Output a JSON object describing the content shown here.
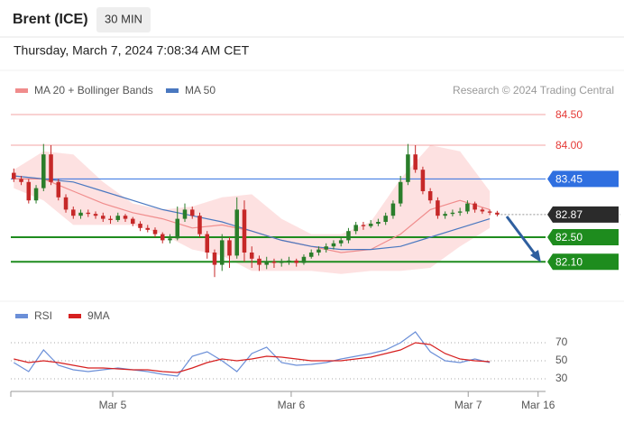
{
  "header": {
    "title": "Brent (ICE)",
    "timeframe": "30 MIN",
    "timestamp": "Thursday, March 7, 2024 7:08:34 AM CET"
  },
  "chart_data": [
    {
      "type": "candlestick",
      "note": "Research © 2024 Trading Central",
      "xlim": [
        -0.4,
        71.5
      ],
      "ylim": [
        81.5,
        84.75
      ],
      "up_color": "#2a7d2a",
      "down_color": "#c62828",
      "x": [
        0,
        1,
        2,
        3,
        4,
        5,
        6,
        7,
        8,
        9,
        10,
        11,
        12,
        13,
        14,
        15,
        16,
        17,
        18,
        19,
        20,
        21,
        22,
        23,
        24,
        25,
        26,
        27,
        28,
        29,
        30,
        31,
        32,
        33,
        34,
        35,
        36,
        37,
        38,
        39,
        40,
        41,
        42,
        43,
        44,
        45,
        46,
        47,
        48,
        49,
        50,
        51,
        52,
        53,
        54,
        55,
        56,
        57,
        58,
        59,
        60,
        61,
        62,
        63,
        64,
        65
      ],
      "open": [
        83.55,
        83.45,
        83.4,
        83.1,
        83.3,
        83.85,
        83.4,
        83.15,
        82.95,
        82.85,
        82.9,
        82.88,
        82.85,
        82.8,
        82.78,
        82.85,
        82.8,
        82.72,
        82.65,
        82.62,
        82.55,
        82.45,
        82.48,
        82.8,
        82.95,
        82.85,
        82.55,
        82.25,
        82.05,
        82.45,
        82.2,
        82.95,
        82.25,
        82.15,
        82.05,
        82.1,
        82.08,
        82.1,
        82.12,
        82.08,
        82.18,
        82.25,
        82.3,
        82.35,
        82.4,
        82.45,
        82.6,
        82.7,
        82.68,
        82.72,
        82.75,
        82.85,
        83.05,
        83.4,
        83.85,
        83.6,
        83.25,
        83.1,
        82.85,
        82.88,
        82.9,
        82.92,
        83.05,
        82.95,
        82.92,
        82.9
      ],
      "high": [
        83.62,
        83.5,
        83.45,
        83.35,
        84.02,
        84.0,
        83.45,
        83.2,
        83.0,
        82.95,
        82.95,
        82.92,
        82.9,
        82.85,
        82.9,
        82.88,
        82.83,
        82.76,
        82.7,
        82.66,
        82.58,
        82.55,
        83.0,
        83.05,
        83.0,
        82.9,
        82.6,
        82.3,
        82.55,
        82.5,
        83.15,
        83.1,
        82.35,
        82.2,
        82.18,
        82.15,
        82.15,
        82.18,
        82.15,
        82.22,
        82.3,
        82.35,
        82.4,
        82.45,
        82.5,
        82.65,
        82.75,
        82.75,
        82.78,
        82.8,
        82.9,
        83.1,
        83.5,
        84.02,
        84.0,
        83.65,
        83.3,
        83.15,
        82.92,
        82.95,
        82.98,
        83.1,
        83.08,
        82.98,
        82.95,
        82.93
      ],
      "low": [
        83.4,
        83.35,
        83.05,
        83.05,
        83.25,
        83.35,
        83.1,
        82.9,
        82.8,
        82.8,
        82.83,
        82.8,
        82.75,
        82.72,
        82.75,
        82.75,
        82.68,
        82.6,
        82.58,
        82.5,
        82.4,
        82.4,
        82.45,
        82.75,
        82.8,
        82.5,
        82.15,
        81.85,
        81.95,
        82.0,
        82.15,
        82.1,
        82.0,
        81.95,
        81.98,
        82.0,
        82.02,
        82.05,
        82.02,
        82.05,
        82.15,
        82.2,
        82.25,
        82.3,
        82.35,
        82.4,
        82.55,
        82.62,
        82.65,
        82.68,
        82.7,
        82.8,
        83.0,
        83.35,
        83.55,
        83.2,
        83.05,
        82.8,
        82.8,
        82.84,
        82.85,
        82.88,
        82.9,
        82.88,
        82.86,
        82.84
      ],
      "close": [
        83.45,
        83.4,
        83.1,
        83.3,
        83.85,
        83.4,
        83.15,
        82.95,
        82.85,
        82.9,
        82.88,
        82.85,
        82.8,
        82.78,
        82.85,
        82.8,
        82.72,
        82.65,
        82.62,
        82.55,
        82.45,
        82.48,
        82.8,
        82.95,
        82.85,
        82.55,
        82.25,
        82.05,
        82.45,
        82.2,
        82.95,
        82.25,
        82.15,
        82.05,
        82.1,
        82.08,
        82.1,
        82.12,
        82.08,
        82.18,
        82.25,
        82.3,
        82.35,
        82.4,
        82.45,
        82.6,
        82.7,
        82.68,
        82.72,
        82.75,
        82.85,
        83.05,
        83.4,
        83.85,
        83.6,
        83.25,
        83.1,
        82.85,
        82.88,
        82.9,
        82.92,
        83.05,
        82.95,
        82.92,
        82.9,
        82.87
      ],
      "series": [
        {
          "name": "MA 20 + Bollinger Bands",
          "color": "#f08c8c",
          "band_color": "#fcd9d9",
          "x": [
            0,
            4,
            8,
            12,
            16,
            20,
            24,
            28,
            32,
            36,
            40,
            44,
            48,
            52,
            56,
            60,
            64
          ],
          "values": [
            83.45,
            83.45,
            83.25,
            83.05,
            82.9,
            82.8,
            82.65,
            82.7,
            82.6,
            82.45,
            82.35,
            82.25,
            82.3,
            82.55,
            82.95,
            83.1,
            82.95
          ],
          "upper": [
            83.6,
            83.9,
            83.85,
            83.4,
            83.05,
            82.95,
            83.0,
            83.15,
            83.2,
            82.8,
            82.55,
            82.55,
            82.75,
            83.45,
            84.0,
            83.9,
            83.25
          ],
          "lower": [
            83.3,
            83.1,
            82.7,
            82.7,
            82.7,
            82.55,
            82.3,
            82.2,
            81.95,
            81.95,
            81.95,
            81.9,
            81.95,
            81.95,
            82.0,
            82.35,
            82.65
          ]
        },
        {
          "name": "MA 50",
          "color": "#4a78c0",
          "x": [
            0,
            4,
            8,
            12,
            16,
            20,
            24,
            28,
            32,
            36,
            40,
            44,
            48,
            52,
            56,
            60,
            64
          ],
          "values": [
            83.5,
            83.45,
            83.4,
            83.25,
            83.1,
            82.95,
            82.85,
            82.75,
            82.6,
            82.45,
            82.35,
            82.3,
            82.3,
            82.35,
            82.5,
            82.65,
            82.8
          ]
        }
      ],
      "levels": [
        {
          "value": 84.5,
          "label": "84.50",
          "color": "#e53935",
          "boxed": false,
          "line_style": "solid",
          "line_width": 1
        },
        {
          "value": 84,
          "label": "84.00",
          "color": "#e53935",
          "boxed": false,
          "line_style": "solid",
          "line_width": 1
        },
        {
          "value": 83.45,
          "label": "83.45",
          "color": "#2f6fe0",
          "boxed": true,
          "line_style": "solid",
          "line_width": 1
        },
        {
          "value": 82.87,
          "label": "82.87",
          "color": "#2b2b2b",
          "boxed": true,
          "line_style": "dotted",
          "line_width": 1
        },
        {
          "value": 82.5,
          "label": "82.50",
          "color": "#1e8c1e",
          "boxed": true,
          "line_style": "solid",
          "line_width": 2
        },
        {
          "value": 82.1,
          "label": "82.10",
          "color": "#1e8c1e",
          "boxed": true,
          "line_style": "solid",
          "line_width": 2
        }
      ]
    },
    {
      "type": "line",
      "xlim": [
        -0.4,
        71.5
      ],
      "ylim": [
        20,
        85
      ],
      "yticks": [
        70,
        50,
        30
      ],
      "grid": true,
      "xticks": [
        {
          "value": 13.3,
          "label": "Mar 5"
        },
        {
          "value": 37.3,
          "label": "Mar 6"
        },
        {
          "value": 61.1,
          "label": "Mar 7"
        },
        {
          "value": 70.5,
          "label": "Mar 16"
        }
      ],
      "x": [
        0,
        2,
        4,
        6,
        8,
        10,
        12,
        14,
        16,
        18,
        20,
        22,
        24,
        26,
        28,
        30,
        32,
        34,
        36,
        38,
        40,
        42,
        44,
        46,
        48,
        50,
        52,
        54,
        56,
        58,
        60,
        62,
        64
      ],
      "series": [
        {
          "name": "RSI",
          "color": "#6b8fd8",
          "values": [
            48,
            38,
            62,
            45,
            40,
            38,
            40,
            42,
            40,
            38,
            35,
            33,
            55,
            60,
            50,
            38,
            58,
            65,
            48,
            45,
            46,
            48,
            52,
            55,
            58,
            62,
            70,
            82,
            60,
            50,
            48,
            52,
            48
          ]
        },
        {
          "name": "9MA",
          "color": "#d62020",
          "values": [
            52,
            48,
            50,
            48,
            45,
            42,
            42,
            41,
            40,
            40,
            38,
            37,
            42,
            48,
            52,
            50,
            52,
            55,
            54,
            52,
            50,
            50,
            50,
            52,
            54,
            58,
            62,
            70,
            68,
            58,
            52,
            50,
            49
          ]
        }
      ]
    }
  ]
}
